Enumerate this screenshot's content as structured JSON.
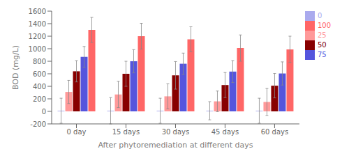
{
  "chart_data": {
    "type": "bar",
    "xlabel": "After phytoremediation at different days",
    "ylabel": "BOD (mg/L)",
    "categories": [
      "0 day",
      "15 days",
      "30 days",
      "45 days",
      "60 days"
    ],
    "series": [
      {
        "name": "0",
        "color": "#aaaaee",
        "values": [
          10,
          10,
          10,
          10,
          10
        ],
        "errors": [
          200,
          210,
          200,
          145,
          200
        ]
      },
      {
        "name": "25",
        "color": "#ff9999",
        "values": [
          310,
          270,
          240,
          160,
          150
        ],
        "errors": [
          185,
          210,
          200,
          165,
          215
        ]
      },
      {
        "name": "50",
        "color": "#880000",
        "values": [
          640,
          600,
          575,
          420,
          410
        ],
        "errors": [
          170,
          200,
          220,
          200,
          195
        ]
      },
      {
        "name": "75",
        "color": "#5555dd",
        "values": [
          870,
          800,
          760,
          635,
          605
        ],
        "errors": [
          165,
          185,
          170,
          175,
          185
        ]
      },
      {
        "name": "100",
        "color": "#ff6666",
        "values": [
          1300,
          1200,
          1150,
          1010,
          990
        ],
        "errors": [
          200,
          205,
          200,
          210,
          210
        ]
      }
    ],
    "ylim": [
      -200,
      1600
    ],
    "yticks": [
      -200,
      0,
      200,
      400,
      600,
      800,
      1000,
      1200,
      1400,
      1600
    ],
    "grid": false,
    "legend": "upper right"
  }
}
